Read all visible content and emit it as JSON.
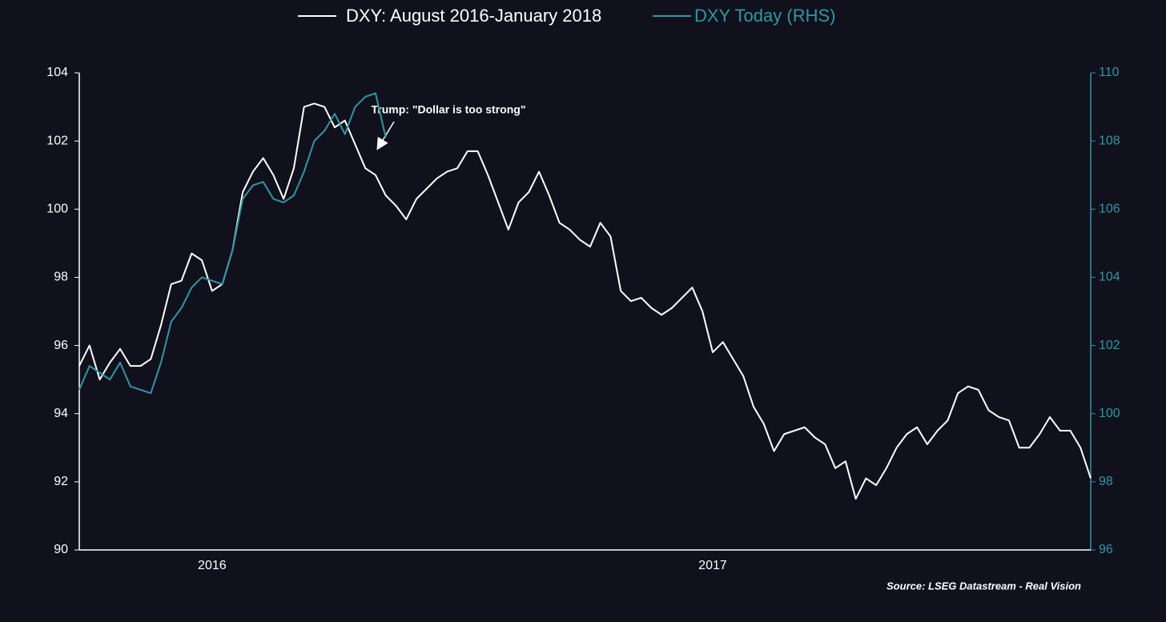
{
  "chart_data": {
    "type": "line",
    "annotation": "Trump: \"Dollar is too strong\"",
    "source": "Source: LSEG Datastream - Real Vision",
    "categories": [
      null,
      null,
      null,
      null,
      null,
      null,
      null,
      null,
      null,
      null,
      null,
      null,
      null,
      "2016",
      null,
      null,
      null,
      null,
      null,
      null,
      null,
      null,
      null,
      null,
      null,
      null,
      null,
      null,
      null,
      null,
      null,
      null,
      null,
      null,
      null,
      null,
      null,
      null,
      null,
      null,
      null,
      null,
      null,
      null,
      null,
      null,
      null,
      null,
      null,
      null,
      null,
      null,
      null,
      null,
      null,
      null,
      null,
      null,
      null,
      null,
      null,
      null,
      "2017",
      null,
      null,
      null,
      null,
      null,
      null,
      null,
      null,
      null,
      null,
      null,
      null,
      null,
      null,
      null,
      null,
      null,
      null,
      null,
      null,
      null,
      null,
      null,
      null,
      null,
      null,
      null,
      null,
      null,
      null,
      null,
      null,
      null,
      null,
      null,
      null,
      null
    ],
    "ylim": [
      90,
      104
    ],
    "yticks": [
      90,
      92,
      94,
      96,
      98,
      100,
      102,
      104
    ],
    "y2lim": [
      96,
      110
    ],
    "y2ticks": [
      96,
      98,
      100,
      102,
      104,
      106,
      108,
      110
    ],
    "series": [
      {
        "name": "DXY: August 2016-January 2018",
        "color": "#ffffff",
        "values": [
          95.4,
          96.0,
          95.0,
          95.5,
          95.9,
          95.4,
          95.4,
          95.6,
          96.6,
          97.8,
          97.9,
          98.7,
          98.5,
          97.6,
          97.8,
          98.8,
          100.5,
          101.1,
          101.5,
          101.0,
          100.3,
          101.2,
          103.0,
          103.1,
          103.0,
          102.4,
          102.6,
          101.9,
          101.2,
          101.0,
          100.4,
          100.1,
          99.7,
          100.3,
          100.6,
          100.9,
          101.1,
          101.2,
          101.7,
          101.7,
          101.0,
          100.2,
          99.4,
          100.2,
          100.5,
          101.1,
          100.4,
          99.6,
          99.4,
          99.1,
          98.9,
          99.6,
          99.2,
          97.6,
          97.3,
          97.4,
          97.1,
          96.9,
          97.1,
          97.4,
          97.7,
          97.0,
          95.8,
          96.1,
          95.6,
          95.1,
          94.2,
          93.7,
          92.9,
          93.4,
          93.5,
          93.6,
          93.3,
          93.1,
          92.4,
          92.6,
          91.5,
          92.1,
          91.9,
          92.4,
          93.0,
          93.4,
          93.6,
          93.1,
          93.5,
          93.8,
          94.6,
          94.8,
          94.7,
          94.1,
          93.9,
          93.8,
          93.0,
          93.0,
          93.4,
          93.9,
          93.5,
          93.5,
          93.0,
          92.1
        ]
      },
      {
        "name": "DXY Today (RHS)",
        "color": "#2e98a5",
        "axis": "y2",
        "values": [
          100.7,
          101.4,
          101.2,
          101.0,
          101.5,
          100.8,
          100.7,
          100.6,
          101.5,
          102.7,
          103.1,
          103.7,
          104.0,
          103.9,
          103.8,
          104.8,
          106.3,
          106.7,
          106.8,
          106.3,
          106.2,
          106.4,
          107.1,
          108.0,
          108.3,
          108.8,
          108.2,
          109.0,
          109.3,
          109.4,
          108.1,
          null,
          null,
          null,
          null,
          null,
          null,
          null,
          null,
          null,
          null,
          null,
          null,
          null,
          null,
          null,
          null,
          null,
          null,
          null,
          null,
          null,
          null,
          null,
          null,
          null,
          null,
          null,
          null,
          null,
          null,
          null,
          null,
          null,
          null,
          null,
          null,
          null,
          null,
          null,
          null,
          null,
          null,
          null,
          null,
          null,
          null,
          null,
          null,
          null,
          null,
          null,
          null,
          null,
          null,
          null,
          null,
          null,
          null,
          null,
          null,
          null,
          null,
          null,
          null,
          null,
          null,
          null,
          null,
          null
        ]
      }
    ]
  }
}
